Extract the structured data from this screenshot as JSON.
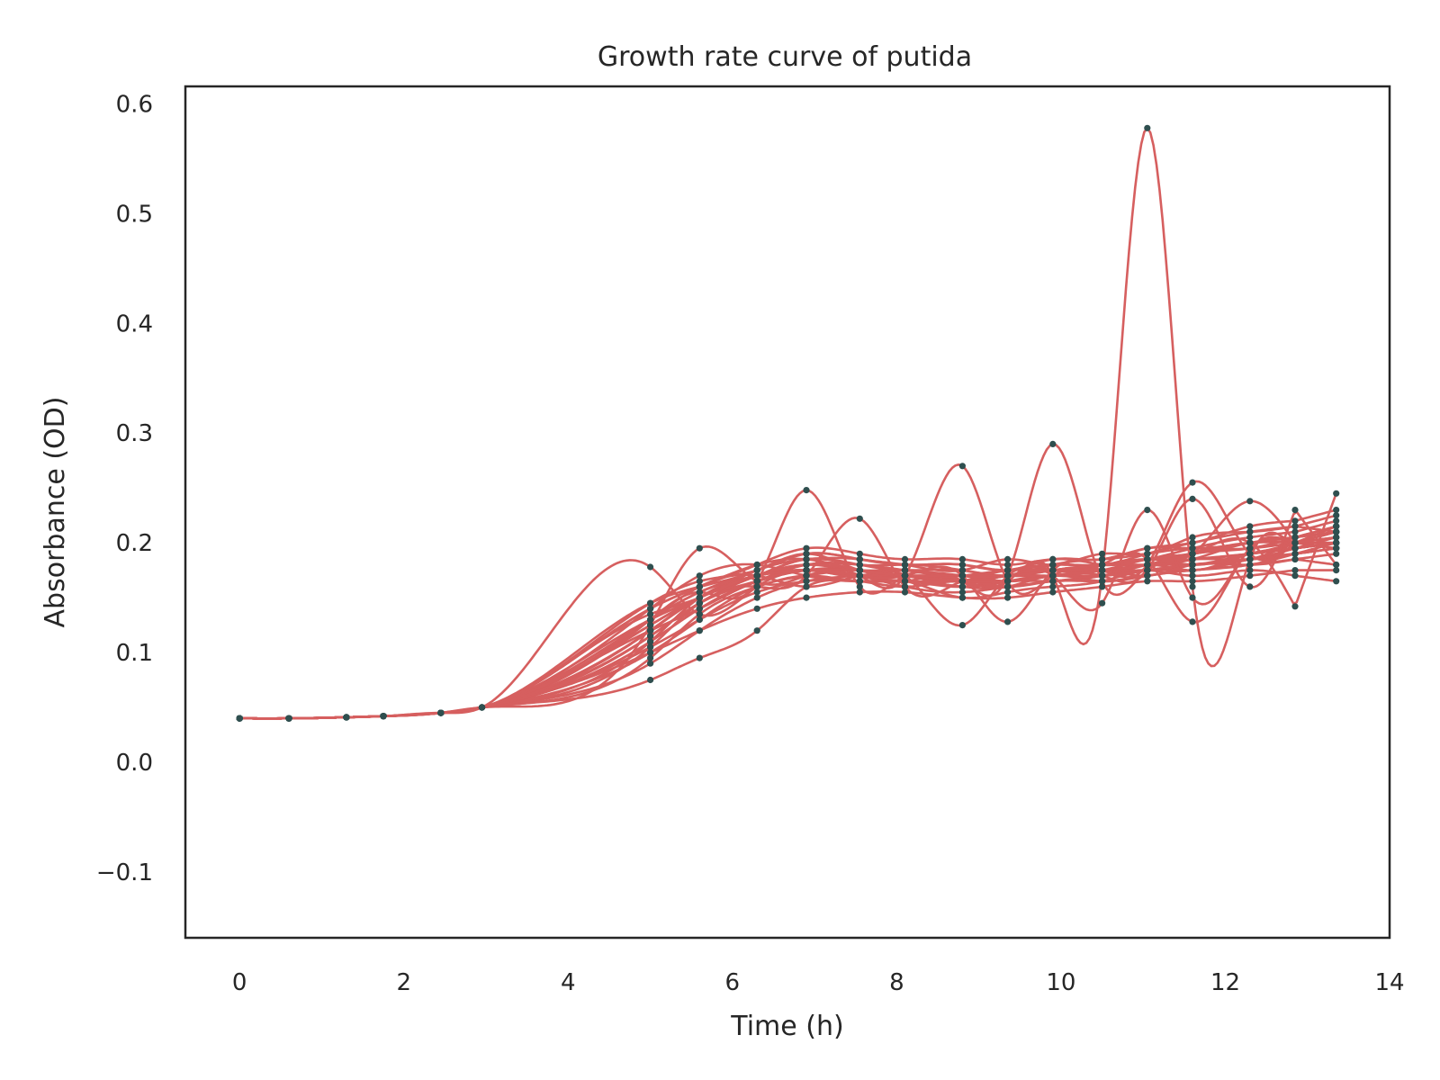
{
  "chart_data": {
    "type": "line",
    "title": "Growth rate curve of putida",
    "xlabel": "Time (h)",
    "ylabel": "Absorbance (OD)",
    "xlim": [
      -0.66,
      14
    ],
    "ylim": [
      -0.16,
      0.616
    ],
    "xticks": [
      0,
      2,
      4,
      6,
      8,
      10,
      12,
      14
    ],
    "xtick_labels": [
      "0",
      "2",
      "4",
      "6",
      "8",
      "10",
      "12",
      "14"
    ],
    "yticks": [
      -0.1,
      0.0,
      0.1,
      0.2,
      0.3,
      0.4,
      0.5,
      0.6
    ],
    "ytick_labels": [
      "−0.1",
      "0.0",
      "0.1",
      "0.2",
      "0.3",
      "0.4",
      "0.5",
      "0.6"
    ],
    "grid": false,
    "line_color": "#d65f5f",
    "marker_color": "#2f4f4f",
    "x": [
      0,
      0.6,
      1.3,
      1.75,
      2.45,
      2.95,
      5.0,
      5.6,
      6.3,
      6.9,
      7.55,
      8.1,
      8.8,
      9.35,
      9.9,
      10.5,
      11.05,
      11.6,
      12.3,
      12.85,
      13.35
    ],
    "series": [
      {
        "values": [
          0.04,
          0.04,
          0.041,
          0.042,
          0.045,
          0.05,
          0.075,
          0.095,
          0.12,
          0.16,
          0.165,
          0.165,
          0.15,
          0.155,
          0.16,
          0.165,
          0.175,
          0.175,
          0.185,
          0.19,
          0.2
        ]
      },
      {
        "values": [
          0.04,
          0.04,
          0.041,
          0.042,
          0.045,
          0.05,
          0.09,
          0.12,
          0.15,
          0.165,
          0.17,
          0.17,
          0.16,
          0.165,
          0.17,
          0.17,
          0.18,
          0.185,
          0.19,
          0.195,
          0.205
        ]
      },
      {
        "values": [
          0.04,
          0.04,
          0.041,
          0.042,
          0.045,
          0.05,
          0.1,
          0.13,
          0.16,
          0.17,
          0.175,
          0.17,
          0.165,
          0.17,
          0.175,
          0.175,
          0.18,
          0.19,
          0.195,
          0.2,
          0.21
        ]
      },
      {
        "values": [
          0.04,
          0.04,
          0.041,
          0.042,
          0.045,
          0.05,
          0.11,
          0.14,
          0.165,
          0.18,
          0.18,
          0.175,
          0.17,
          0.165,
          0.17,
          0.175,
          0.185,
          0.19,
          0.2,
          0.205,
          0.215
        ]
      },
      {
        "values": [
          0.04,
          0.04,
          0.041,
          0.042,
          0.045,
          0.05,
          0.12,
          0.15,
          0.17,
          0.185,
          0.18,
          0.18,
          0.175,
          0.17,
          0.175,
          0.18,
          0.185,
          0.195,
          0.205,
          0.21,
          0.22
        ]
      },
      {
        "values": [
          0.04,
          0.04,
          0.041,
          0.042,
          0.045,
          0.05,
          0.13,
          0.155,
          0.175,
          0.19,
          0.185,
          0.18,
          0.18,
          0.175,
          0.18,
          0.18,
          0.19,
          0.2,
          0.21,
          0.215,
          0.225
        ]
      },
      {
        "values": [
          0.04,
          0.04,
          0.041,
          0.042,
          0.045,
          0.05,
          0.14,
          0.16,
          0.18,
          0.195,
          0.19,
          0.185,
          0.185,
          0.18,
          0.185,
          0.185,
          0.195,
          0.2,
          0.215,
          0.22,
          0.23
        ]
      },
      {
        "values": [
          0.04,
          0.04,
          0.041,
          0.042,
          0.045,
          0.05,
          0.145,
          0.165,
          0.175,
          0.19,
          0.185,
          0.18,
          0.175,
          0.185,
          0.18,
          0.19,
          0.19,
          0.205,
          0.21,
          0.215,
          0.21
        ]
      },
      {
        "values": [
          0.04,
          0.04,
          0.041,
          0.042,
          0.045,
          0.05,
          0.105,
          0.145,
          0.165,
          0.175,
          0.17,
          0.16,
          0.155,
          0.16,
          0.165,
          0.17,
          0.175,
          0.18,
          0.185,
          0.2,
          0.195
        ]
      },
      {
        "values": [
          0.04,
          0.04,
          0.041,
          0.042,
          0.045,
          0.05,
          0.095,
          0.135,
          0.16,
          0.17,
          0.165,
          0.165,
          0.16,
          0.16,
          0.17,
          0.165,
          0.17,
          0.175,
          0.18,
          0.185,
          0.18
        ]
      },
      {
        "values": [
          0.04,
          0.04,
          0.041,
          0.042,
          0.045,
          0.05,
          0.115,
          0.145,
          0.17,
          0.18,
          0.175,
          0.175,
          0.17,
          0.175,
          0.175,
          0.18,
          0.18,
          0.185,
          0.2,
          0.2,
          0.2
        ]
      },
      {
        "values": [
          0.04,
          0.04,
          0.041,
          0.042,
          0.045,
          0.05,
          0.125,
          0.15,
          0.17,
          0.185,
          0.18,
          0.175,
          0.175,
          0.17,
          0.18,
          0.185,
          0.19,
          0.195,
          0.195,
          0.205,
          0.215
        ]
      },
      {
        "values": [
          0.04,
          0.04,
          0.041,
          0.042,
          0.045,
          0.05,
          0.14,
          0.17,
          0.18,
          0.17,
          0.165,
          0.165,
          0.16,
          0.165,
          0.165,
          0.17,
          0.175,
          0.17,
          0.175,
          0.17,
          0.165
        ]
      },
      {
        "values": [
          0.04,
          0.04,
          0.041,
          0.042,
          0.045,
          0.05,
          0.1,
          0.12,
          0.14,
          0.15,
          0.155,
          0.155,
          0.15,
          0.15,
          0.155,
          0.16,
          0.165,
          0.165,
          0.17,
          0.175,
          0.175
        ]
      },
      {
        "values": [
          0.04,
          0.04,
          0.041,
          0.042,
          0.045,
          0.05,
          0.13,
          0.16,
          0.17,
          0.16,
          0.17,
          0.17,
          0.165,
          0.17,
          0.17,
          0.175,
          0.17,
          0.18,
          0.18,
          0.185,
          0.19
        ]
      },
      {
        "values": [
          0.04,
          0.04,
          0.041,
          0.042,
          0.045,
          0.05,
          0.12,
          0.14,
          0.165,
          0.175,
          0.175,
          0.17,
          0.165,
          0.165,
          0.17,
          0.17,
          0.18,
          0.175,
          0.19,
          0.195,
          0.2
        ]
      },
      {
        "values": [
          0.04,
          0.04,
          0.041,
          0.042,
          0.045,
          0.05,
          0.11,
          0.15,
          0.17,
          0.18,
          0.18,
          0.175,
          0.17,
          0.175,
          0.175,
          0.18,
          0.18,
          0.19,
          0.2,
          0.2,
          0.205
        ]
      },
      {
        "values": [
          0.04,
          0.04,
          0.041,
          0.042,
          0.045,
          0.05,
          0.135,
          0.15,
          0.175,
          0.185,
          0.185,
          0.18,
          0.18,
          0.175,
          0.185,
          0.185,
          0.195,
          0.195,
          0.2,
          0.205,
          0.21
        ]
      },
      {
        "values": [
          0.04,
          0.04,
          0.041,
          0.042,
          0.045,
          0.05,
          0.145,
          0.16,
          0.175,
          0.19,
          0.175,
          0.17,
          0.17,
          0.17,
          0.17,
          0.175,
          0.18,
          0.185,
          0.185,
          0.19,
          0.195
        ]
      },
      {
        "values": [
          0.04,
          0.04,
          0.041,
          0.042,
          0.045,
          0.05,
          0.105,
          0.13,
          0.155,
          0.165,
          0.165,
          0.16,
          0.165,
          0.16,
          0.165,
          0.165,
          0.17,
          0.175,
          0.18,
          0.19,
          0.195
        ]
      },
      {
        "values": [
          0.04,
          0.04,
          0.041,
          0.042,
          0.045,
          0.05,
          0.178,
          0.135,
          0.16,
          0.175,
          0.17,
          0.165,
          0.165,
          0.165,
          0.17,
          0.175,
          0.175,
          0.18,
          0.185,
          0.195,
          0.2
        ]
      },
      {
        "values": [
          0.04,
          0.04,
          0.041,
          0.042,
          0.045,
          0.05,
          0.125,
          0.195,
          0.165,
          0.17,
          0.175,
          0.17,
          0.17,
          0.17,
          0.175,
          0.175,
          0.18,
          0.185,
          0.19,
          0.195,
          0.2
        ]
      },
      {
        "values": [
          0.04,
          0.04,
          0.041,
          0.042,
          0.045,
          0.05,
          0.13,
          0.155,
          0.165,
          0.248,
          0.16,
          0.17,
          0.165,
          0.17,
          0.17,
          0.175,
          0.18,
          0.185,
          0.19,
          0.2,
          0.205
        ]
      },
      {
        "values": [
          0.04,
          0.04,
          0.041,
          0.042,
          0.045,
          0.05,
          0.12,
          0.15,
          0.16,
          0.17,
          0.222,
          0.16,
          0.165,
          0.165,
          0.17,
          0.17,
          0.175,
          0.18,
          0.185,
          0.19,
          0.195
        ]
      },
      {
        "values": [
          0.04,
          0.04,
          0.041,
          0.042,
          0.045,
          0.05,
          0.11,
          0.14,
          0.165,
          0.175,
          0.17,
          0.17,
          0.27,
          0.165,
          0.17,
          0.175,
          0.18,
          0.18,
          0.19,
          0.195,
          0.2
        ]
      },
      {
        "values": [
          0.04,
          0.04,
          0.041,
          0.042,
          0.045,
          0.05,
          0.115,
          0.145,
          0.165,
          0.175,
          0.17,
          0.165,
          0.165,
          0.17,
          0.29,
          0.165,
          0.175,
          0.18,
          0.19,
          0.195,
          0.2
        ]
      },
      {
        "values": [
          0.04,
          0.04,
          0.041,
          0.042,
          0.045,
          0.05,
          0.12,
          0.15,
          0.17,
          0.175,
          0.17,
          0.17,
          0.165,
          0.165,
          0.17,
          0.17,
          0.578,
          0.16,
          0.185,
          0.195,
          0.2
        ]
      },
      {
        "values": [
          0.04,
          0.04,
          0.041,
          0.042,
          0.045,
          0.05,
          0.125,
          0.15,
          0.17,
          0.18,
          0.175,
          0.17,
          0.17,
          0.17,
          0.175,
          0.175,
          0.18,
          0.255,
          0.19,
          0.2,
          0.21
        ]
      },
      {
        "values": [
          0.04,
          0.04,
          0.041,
          0.042,
          0.045,
          0.05,
          0.13,
          0.155,
          0.17,
          0.175,
          0.17,
          0.175,
          0.17,
          0.175,
          0.18,
          0.18,
          0.185,
          0.19,
          0.238,
          0.2,
          0.215
        ]
      },
      {
        "values": [
          0.04,
          0.04,
          0.041,
          0.042,
          0.045,
          0.05,
          0.12,
          0.15,
          0.17,
          0.175,
          0.17,
          0.17,
          0.17,
          0.17,
          0.175,
          0.18,
          0.185,
          0.19,
          0.2,
          0.142,
          0.245
        ]
      },
      {
        "values": [
          0.04,
          0.04,
          0.041,
          0.042,
          0.045,
          0.05,
          0.115,
          0.145,
          0.165,
          0.175,
          0.17,
          0.17,
          0.125,
          0.17,
          0.175,
          0.175,
          0.18,
          0.19,
          0.195,
          0.205,
          0.21
        ]
      },
      {
        "values": [
          0.04,
          0.04,
          0.041,
          0.042,
          0.045,
          0.05,
          0.125,
          0.15,
          0.17,
          0.175,
          0.17,
          0.17,
          0.17,
          0.128,
          0.175,
          0.18,
          0.185,
          0.19,
          0.2,
          0.205,
          0.215
        ]
      },
      {
        "values": [
          0.04,
          0.04,
          0.041,
          0.042,
          0.045,
          0.05,
          0.12,
          0.15,
          0.17,
          0.175,
          0.175,
          0.17,
          0.17,
          0.175,
          0.175,
          0.18,
          0.185,
          0.128,
          0.195,
          0.2,
          0.21
        ]
      },
      {
        "values": [
          0.04,
          0.04,
          0.041,
          0.042,
          0.045,
          0.05,
          0.13,
          0.15,
          0.17,
          0.175,
          0.175,
          0.17,
          0.17,
          0.17,
          0.17,
          0.145,
          0.23,
          0.15,
          0.195,
          0.2,
          0.205
        ]
      },
      {
        "values": [
          0.04,
          0.04,
          0.041,
          0.042,
          0.045,
          0.05,
          0.14,
          0.16,
          0.18,
          0.185,
          0.175,
          0.17,
          0.165,
          0.165,
          0.17,
          0.17,
          0.175,
          0.24,
          0.16,
          0.23,
          0.18
        ]
      }
    ]
  }
}
